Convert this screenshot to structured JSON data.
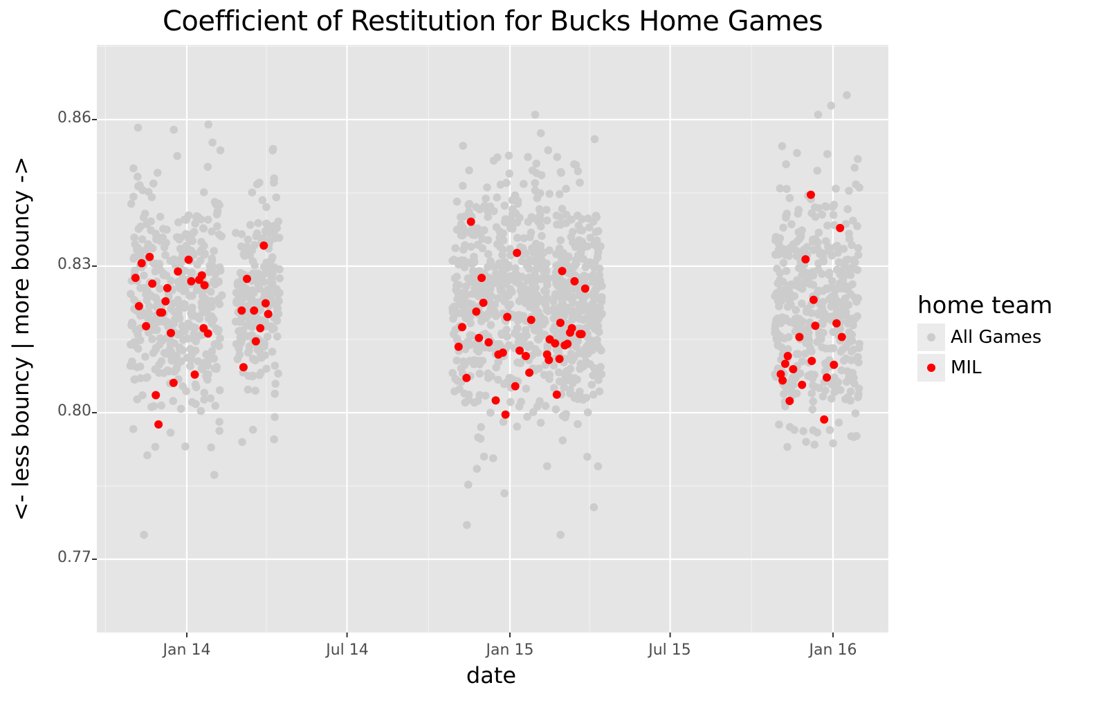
{
  "chart_data": {
    "type": "scatter",
    "title": "Coefficient of Restitution for Bucks Home Games",
    "xlabel": "date",
    "ylabel": "<- less bouncy | more bouncy ->",
    "x_ticks": [
      "Jan 14",
      "Jul 14",
      "Jan 15",
      "Jul 15",
      "Jan 16"
    ],
    "y_ticks": [
      "0.77",
      "0.80",
      "0.83",
      "0.86"
    ],
    "ylim": [
      0.755,
      0.875
    ],
    "xlim": [
      "2013-09-15",
      "2016-04-01"
    ],
    "grid": true,
    "legend": {
      "title": "home team",
      "position": "right",
      "entries": [
        {
          "label": "All Games",
          "color": "#cccccc"
        },
        {
          "label": "MIL",
          "color": "#ff0000"
        }
      ]
    },
    "series": [
      {
        "name": "All Games",
        "color": "#cccccc",
        "description": "Dense jittered point clouds per season segment",
        "clusters": [
          {
            "x_start": "2013-10-29",
            "x_end": "2014-02-10",
            "y_mean": 0.822,
            "y_sd": 0.012,
            "y_min": 0.775,
            "y_max": 0.859,
            "n": 420
          },
          {
            "x_start": "2014-02-25",
            "x_end": "2014-04-16",
            "y_mean": 0.823,
            "y_sd": 0.01,
            "y_min": 0.794,
            "y_max": 0.854,
            "n": 220
          },
          {
            "x_start": "2014-10-28",
            "x_end": "2015-02-15",
            "y_mean": 0.824,
            "y_sd": 0.012,
            "y_min": 0.777,
            "y_max": 0.861,
            "n": 520
          },
          {
            "x_start": "2015-02-19",
            "x_end": "2015-04-15",
            "y_mean": 0.822,
            "y_sd": 0.011,
            "y_min": 0.775,
            "y_max": 0.856,
            "n": 320
          },
          {
            "x_start": "2015-10-27",
            "x_end": "2016-01-31",
            "y_mean": 0.822,
            "y_sd": 0.012,
            "y_min": 0.793,
            "y_max": 0.865,
            "n": 430
          }
        ]
      },
      {
        "name": "MIL",
        "color": "#ff0000",
        "points": [
          {
            "x": "2013-11-04",
            "y": 0.8276
          },
          {
            "x": "2013-11-08",
            "y": 0.8218
          },
          {
            "x": "2013-11-11",
            "y": 0.8306
          },
          {
            "x": "2013-11-16",
            "y": 0.8177
          },
          {
            "x": "2013-11-20",
            "y": 0.8319
          },
          {
            "x": "2013-11-23",
            "y": 0.8264
          },
          {
            "x": "2013-11-27",
            "y": 0.8036
          },
          {
            "x": "2013-11-30",
            "y": 0.7976
          },
          {
            "x": "2013-12-02",
            "y": 0.8205
          },
          {
            "x": "2013-12-04",
            "y": 0.8205
          },
          {
            "x": "2013-12-08",
            "y": 0.8228
          },
          {
            "x": "2013-12-10",
            "y": 0.8255
          },
          {
            "x": "2013-12-14",
            "y": 0.8163
          },
          {
            "x": "2013-12-17",
            "y": 0.8061
          },
          {
            "x": "2013-12-22",
            "y": 0.8289
          },
          {
            "x": "2014-01-03",
            "y": 0.8313
          },
          {
            "x": "2014-01-06",
            "y": 0.8269
          },
          {
            "x": "2014-01-10",
            "y": 0.8078
          },
          {
            "x": "2014-01-15",
            "y": 0.8272
          },
          {
            "x": "2014-01-18",
            "y": 0.8281
          },
          {
            "x": "2014-01-21",
            "y": 0.8261
          },
          {
            "x": "2014-01-20",
            "y": 0.8173
          },
          {
            "x": "2014-01-25",
            "y": 0.8162
          },
          {
            "x": "2014-03-04",
            "y": 0.8209
          },
          {
            "x": "2014-03-06",
            "y": 0.8093
          },
          {
            "x": "2014-03-10",
            "y": 0.8274
          },
          {
            "x": "2014-03-18",
            "y": 0.8209
          },
          {
            "x": "2014-03-20",
            "y": 0.8146
          },
          {
            "x": "2014-03-25",
            "y": 0.8173
          },
          {
            "x": "2014-03-29",
            "y": 0.8342
          },
          {
            "x": "2014-03-31",
            "y": 0.8224
          },
          {
            "x": "2014-04-03",
            "y": 0.8202
          },
          {
            "x": "2014-11-04",
            "y": 0.8135
          },
          {
            "x": "2014-11-08",
            "y": 0.8175
          },
          {
            "x": "2014-11-13",
            "y": 0.8071
          },
          {
            "x": "2014-11-18",
            "y": 0.8391
          },
          {
            "x": "2014-11-24",
            "y": 0.8207
          },
          {
            "x": "2014-11-27",
            "y": 0.8153
          },
          {
            "x": "2014-11-30",
            "y": 0.8276
          },
          {
            "x": "2014-12-02",
            "y": 0.8225
          },
          {
            "x": "2014-12-08",
            "y": 0.8144
          },
          {
            "x": "2014-12-16",
            "y": 0.8025
          },
          {
            "x": "2014-12-19",
            "y": 0.8119
          },
          {
            "x": "2014-12-24",
            "y": 0.8123
          },
          {
            "x": "2014-12-27",
            "y": 0.7996
          },
          {
            "x": "2014-12-29",
            "y": 0.8196
          },
          {
            "x": "2015-01-07",
            "y": 0.8054
          },
          {
            "x": "2015-01-09",
            "y": 0.8327
          },
          {
            "x": "2015-01-12",
            "y": 0.8127
          },
          {
            "x": "2015-01-19",
            "y": 0.8116
          },
          {
            "x": "2015-01-23",
            "y": 0.8082
          },
          {
            "x": "2015-01-25",
            "y": 0.819
          },
          {
            "x": "2015-02-12",
            "y": 0.8119
          },
          {
            "x": "2015-02-14",
            "y": 0.8108
          },
          {
            "x": "2015-02-15",
            "y": 0.815
          },
          {
            "x": "2015-02-21",
            "y": 0.8142
          },
          {
            "x": "2015-02-23",
            "y": 0.8037
          },
          {
            "x": "2015-02-26",
            "y": 0.811
          },
          {
            "x": "2015-02-27",
            "y": 0.8184
          },
          {
            "x": "2015-03-01",
            "y": 0.829
          },
          {
            "x": "2015-03-04",
            "y": 0.8138
          },
          {
            "x": "2015-03-07",
            "y": 0.8141
          },
          {
            "x": "2015-03-10",
            "y": 0.8164
          },
          {
            "x": "2015-03-12",
            "y": 0.8173
          },
          {
            "x": "2015-03-15",
            "y": 0.8269
          },
          {
            "x": "2015-03-21",
            "y": 0.8161
          },
          {
            "x": "2015-03-23",
            "y": 0.8161
          },
          {
            "x": "2015-03-27",
            "y": 0.8254
          },
          {
            "x": "2015-11-03",
            "y": 0.8079
          },
          {
            "x": "2015-11-05",
            "y": 0.8066
          },
          {
            "x": "2015-11-08",
            "y": 0.81
          },
          {
            "x": "2015-11-11",
            "y": 0.8116
          },
          {
            "x": "2015-11-13",
            "y": 0.8024
          },
          {
            "x": "2015-11-17",
            "y": 0.8089
          },
          {
            "x": "2015-11-24",
            "y": 0.8155
          },
          {
            "x": "2015-11-27",
            "y": 0.8057
          },
          {
            "x": "2015-12-01",
            "y": 0.8314
          },
          {
            "x": "2015-12-07",
            "y": 0.8446
          },
          {
            "x": "2015-12-08",
            "y": 0.8106
          },
          {
            "x": "2015-12-10",
            "y": 0.8231
          },
          {
            "x": "2015-12-12",
            "y": 0.8178
          },
          {
            "x": "2015-12-22",
            "y": 0.7986
          },
          {
            "x": "2015-12-25",
            "y": 0.8072
          },
          {
            "x": "2016-01-02",
            "y": 0.8098
          },
          {
            "x": "2016-01-05",
            "y": 0.8183
          },
          {
            "x": "2016-01-09",
            "y": 0.8378
          },
          {
            "x": "2016-01-11",
            "y": 0.8155
          }
        ]
      }
    ]
  }
}
